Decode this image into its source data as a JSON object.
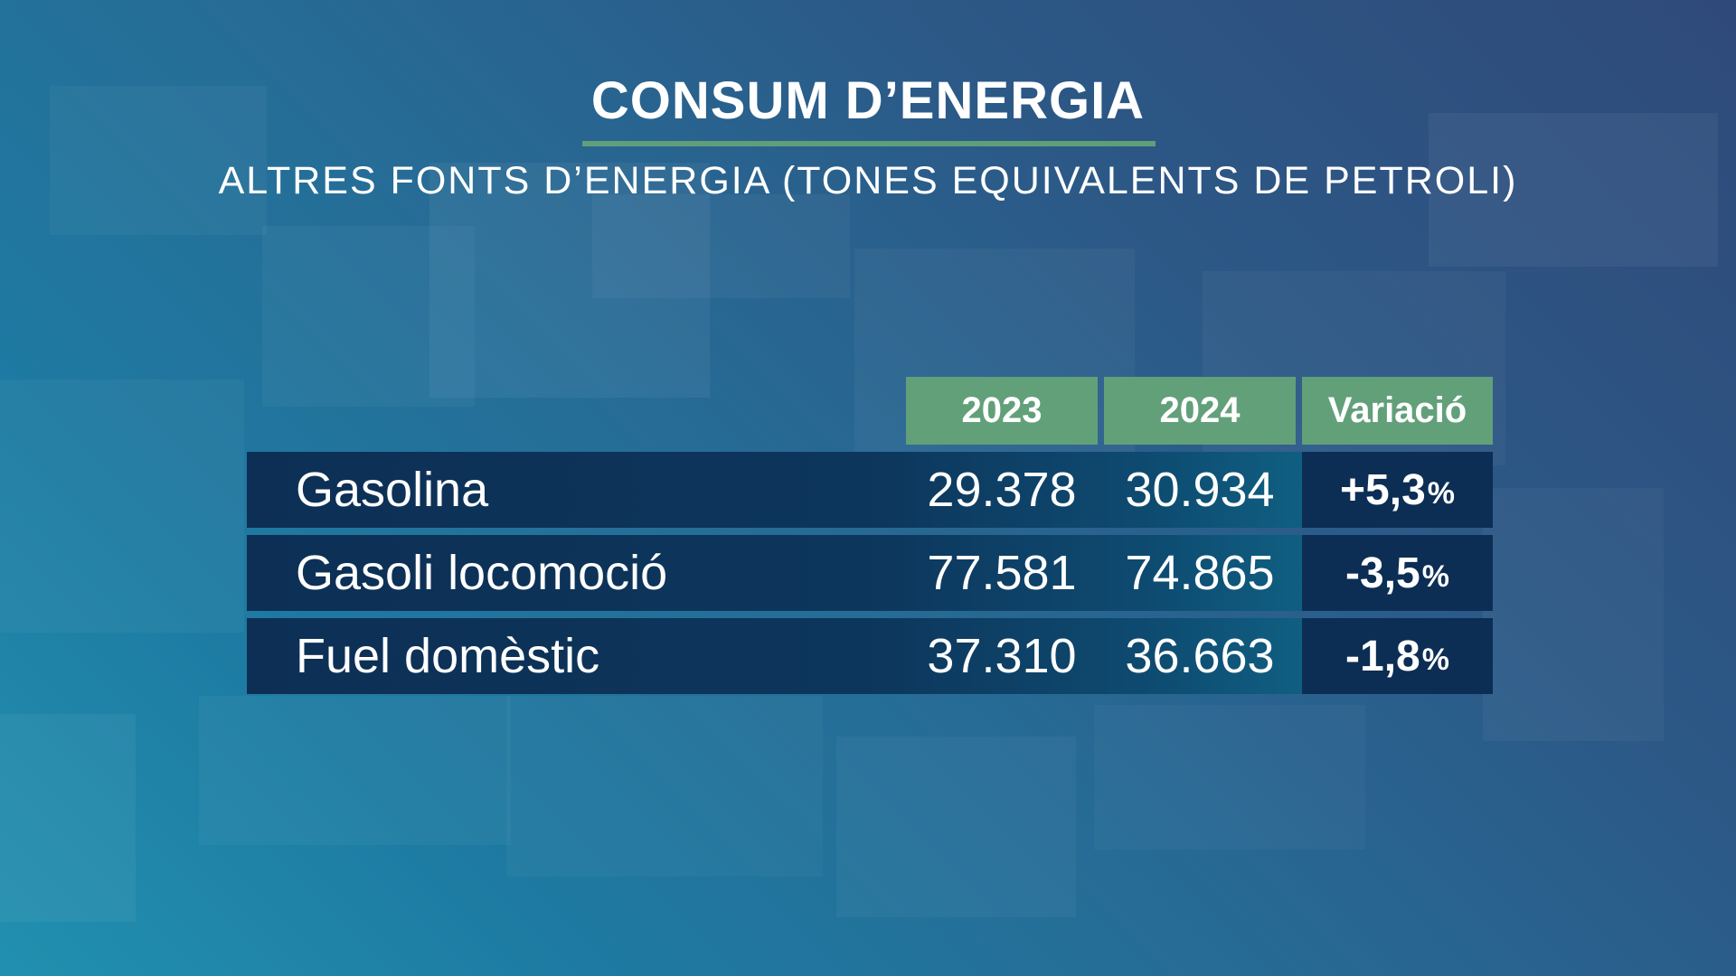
{
  "title": "CONSUM D’ENERGIA",
  "subtitle": "ALTRES FONTS D’ENERGIA (TONES EQUIVALENTS DE PETROLI)",
  "chart_data": {
    "type": "table",
    "title": "CONSUM D’ENERGIA",
    "subtitle": "ALTRES FONTS D’ENERGIA (TONES EQUIVALENTS DE PETROLI)",
    "columns": [
      "2023",
      "2024",
      "Variació"
    ],
    "rows": [
      {
        "label": "Gasolina",
        "v2023": "29.378",
        "v2024": "30.934",
        "variation": "+5,3",
        "unit": "%"
      },
      {
        "label": "Gasoli locomoció",
        "v2023": "77.581",
        "v2024": "74.865",
        "variation": "-3,5",
        "unit": "%"
      },
      {
        "label": "Fuel domèstic",
        "v2023": "37.310",
        "v2024": "36.663",
        "variation": "-1,8",
        "unit": "%"
      }
    ]
  },
  "colors": {
    "header_green": "#62a07a",
    "rule_green": "#5f9f77",
    "row_dark": "#0d2f55",
    "row_teal": "#117896",
    "variation_dark": "#0c2e54"
  }
}
